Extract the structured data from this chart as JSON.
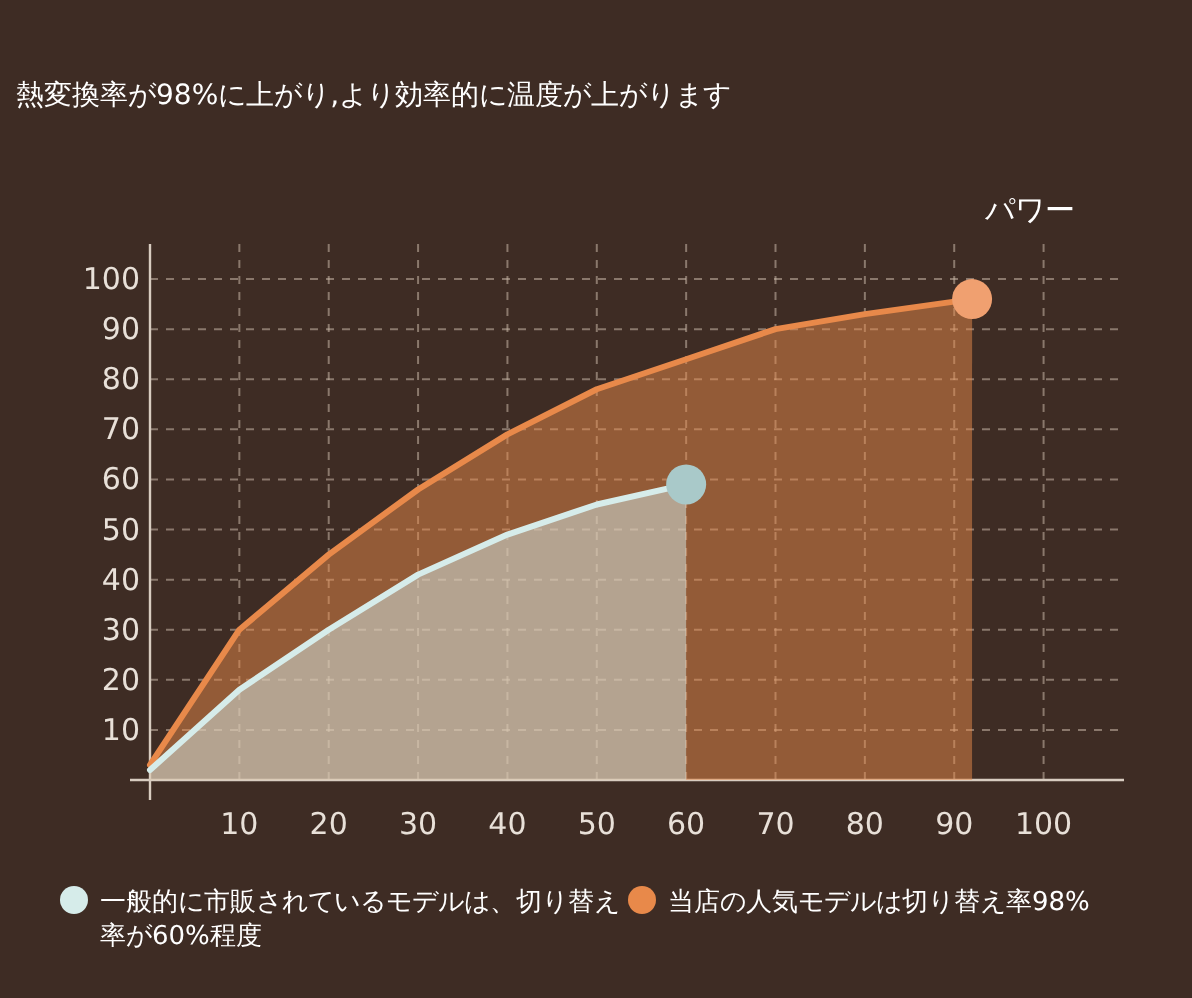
{
  "chart_data": {
    "type": "area",
    "title": "熱変換率が98%に上がり,より効率的に温度が上がります",
    "annotations": [
      "パワー"
    ],
    "xlim": [
      0,
      109
    ],
    "ylim": [
      0,
      107
    ],
    "xticks": [
      10,
      20,
      30,
      40,
      50,
      60,
      70,
      80,
      90,
      100
    ],
    "yticks": [
      10,
      20,
      30,
      40,
      50,
      60,
      70,
      80,
      90,
      100
    ],
    "grid": true,
    "legend": "bottom",
    "line_style": "solid",
    "series": [
      {
        "name": "当店の人気モデルは切り替え率98%",
        "color": "#e8894a",
        "x": [
          0,
          10,
          20,
          30,
          40,
          50,
          60,
          70,
          80,
          92
        ],
        "values": [
          3,
          30,
          45,
          58,
          69,
          78,
          84,
          90,
          93,
          96
        ]
      },
      {
        "name": "一般的に市販されているモデルは、切り替え率が60%程度",
        "color": "#d6ecea",
        "x": [
          0,
          10,
          20,
          30,
          40,
          50,
          60
        ],
        "values": [
          2,
          18,
          30,
          41,
          49,
          55,
          59
        ]
      },
      {
        "type": "scatter",
        "color": "#f0a070",
        "x": [
          92
        ],
        "values": [
          96
        ]
      },
      {
        "type": "scatter",
        "color": "#a9c9c9",
        "x": [
          60
        ],
        "values": [
          59
        ]
      }
    ]
  }
}
